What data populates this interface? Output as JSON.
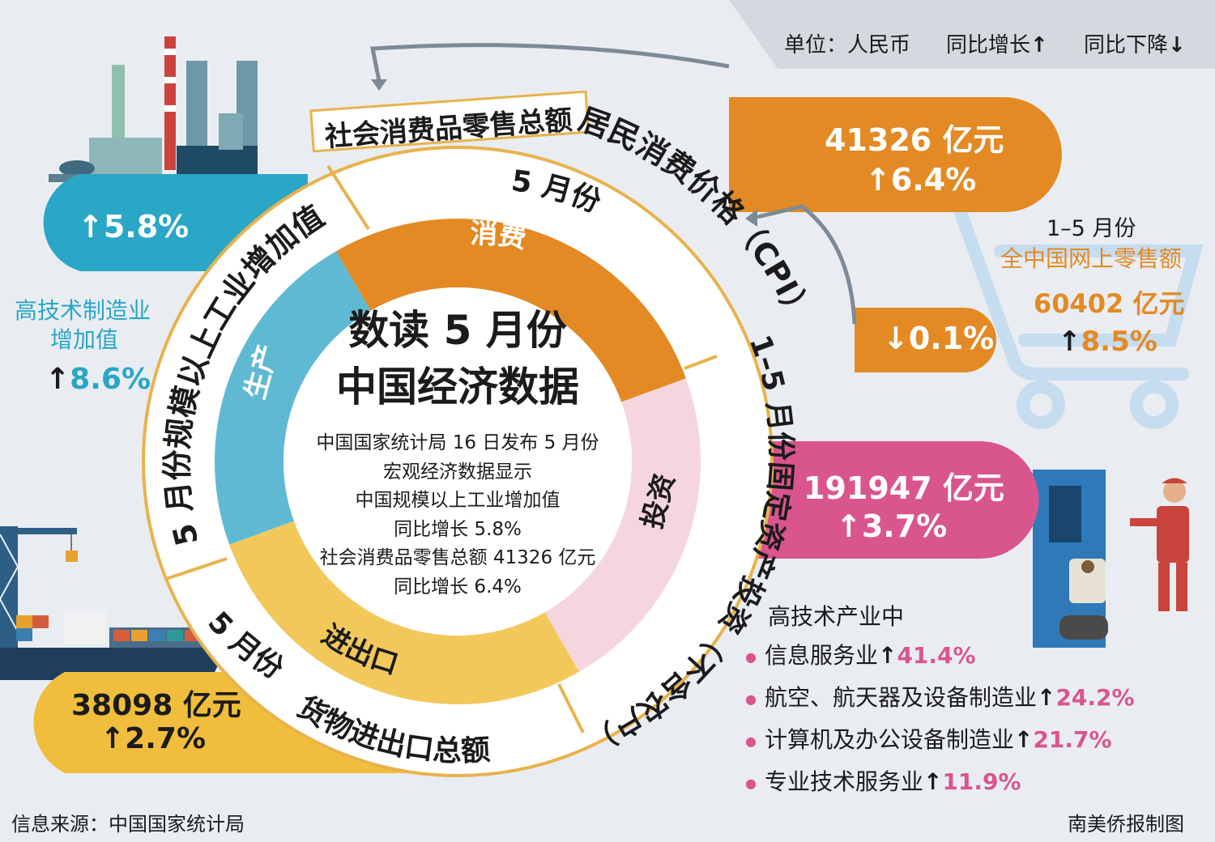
{
  "legend": {
    "unit": "单位：人民币",
    "up": "同比增长",
    "down": "同比下降"
  },
  "center": {
    "title1": "数读 5 月份",
    "title2": "中国经济数据",
    "lines": [
      "中国国家统计局 16 日发布 5 月份",
      "宏观经济数据显示",
      "中国规模以上工业增加值",
      "同比增长 5.8%",
      "社会消费品零售总额 41326 亿元",
      "同比增长 6.4%"
    ]
  },
  "ring": {
    "inner_labels": [
      "消费",
      "投资",
      "进出口",
      "生产"
    ],
    "outer_labels": {
      "retail": "社会消费品零售总额",
      "cpi": "居民消费价格（CPI）",
      "may": "5 月份",
      "investment": "1–5 月份固定资产投资（不含农户）",
      "trade_month": "5 月份",
      "trade": "货物进出口总额",
      "industry": "5 月份规模以上工业增加值"
    }
  },
  "chart_data": {
    "type": "table",
    "title": "数读 5 月份中国经济数据",
    "indicators": [
      {
        "name": "社会消费品零售总额",
        "value": 41326,
        "unit": "亿元",
        "change": 6.4,
        "direction": "up"
      },
      {
        "name": "居民消费价格（CPI）",
        "change": 0.1,
        "direction": "down"
      },
      {
        "name": "1–5 月份全中国网上零售额",
        "value": 60402,
        "unit": "亿元",
        "change": 8.5,
        "direction": "up"
      },
      {
        "name": "1–5 月份固定资产投资（不含农户）",
        "value": 191947,
        "unit": "亿元",
        "change": 3.7,
        "direction": "up"
      },
      {
        "name": "5 月份货物进出口总额",
        "value": 38098,
        "unit": "亿元",
        "change": 2.7,
        "direction": "up"
      },
      {
        "name": "5 月份规模以上工业增加值",
        "change": 5.8,
        "direction": "up"
      },
      {
        "name": "高技术制造业增加值",
        "change": 8.6,
        "direction": "up"
      }
    ],
    "high_tech_industries": [
      {
        "name": "信息服务业",
        "change": 41.4
      },
      {
        "name": "航空、航天器及设备制造业",
        "change": 24.2
      },
      {
        "name": "计算机及办公设备制造业",
        "change": 21.7
      },
      {
        "name": "专业技术服务业",
        "change": 11.9
      }
    ]
  },
  "cards": {
    "retail_value": "41326 亿元",
    "retail_change": "6.4%",
    "cpi_change": "0.1%",
    "online_title1": "1–5 月份",
    "online_title2": "全中国网上零售额",
    "online_value": "60402 亿元",
    "online_change": "8.5%",
    "investment_value": "191947 亿元",
    "investment_change": "3.7%",
    "trade_value": "38098 亿元",
    "trade_change": "2.7%",
    "industry_change": "5.8%",
    "hightech_label1": "高技术制造业",
    "hightech_label2": "增加值",
    "hightech_change": "8.6%",
    "sectors_title": "高技术产业中"
  },
  "colors": {
    "orange": "#e38a24",
    "pink": "#d9558e",
    "cyan": "#2aa6c6",
    "yellow": "#f0be3c",
    "ring_cyan": "#5fb9d3",
    "ring_pink": "#f6d6de",
    "ring_yellow": "#f3c85b"
  },
  "footer": {
    "source": "信息来源：中国国家统计局",
    "credit": "南美侨报制图"
  }
}
